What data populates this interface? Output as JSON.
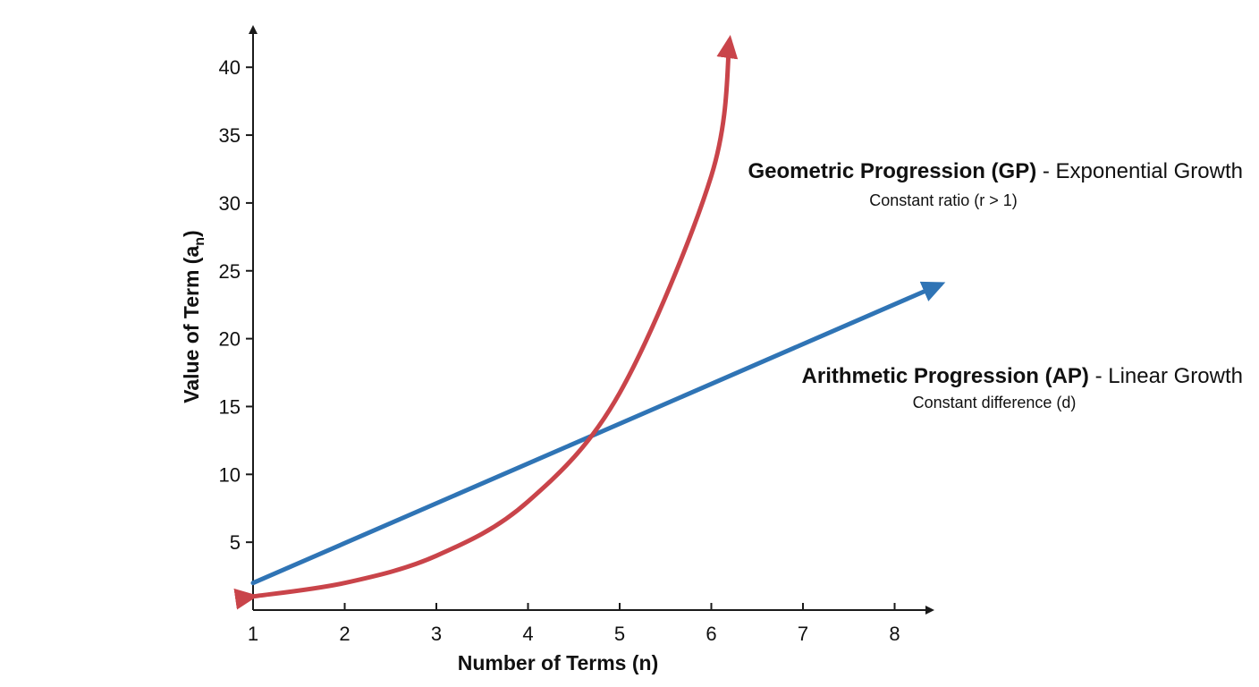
{
  "chart_data": {
    "type": "line",
    "title": "",
    "xlabel": "Number of Terms (n)",
    "ylabel": "Value of Term (a",
    "ylabel_subscript": "n",
    "ylabel_suffix": ")",
    "x_ticks": [
      "1",
      "2",
      "3",
      "4",
      "5",
      "6",
      "7",
      "8"
    ],
    "y_ticks": [
      "5",
      "10",
      "15",
      "20",
      "25",
      "30",
      "35",
      "40"
    ],
    "xlim": [
      1,
      8.5
    ],
    "ylim": [
      0,
      43
    ],
    "grid": false,
    "legend": "none",
    "series": [
      {
        "name": "Geometric Progression (GP)",
        "color": "#c9444a",
        "x": [
          1,
          2,
          3,
          4,
          5,
          6,
          6.2
        ],
        "y": [
          1,
          2,
          4,
          8,
          16,
          32,
          42
        ]
      },
      {
        "name": "Arithmetic Progression (AP)",
        "color": "#2f74b5",
        "x": [
          1,
          8.5
        ],
        "y": [
          2,
          24
        ]
      }
    ],
    "annotations": [
      {
        "bold": "Geometric Progression (GP)",
        "rest": " - Exponential Growth",
        "sub": "Constant ratio (r > 1)"
      },
      {
        "bold": "Arithmetic Progression (AP)",
        "rest": " - Linear Growth",
        "sub": "Constant difference (d)"
      }
    ]
  }
}
